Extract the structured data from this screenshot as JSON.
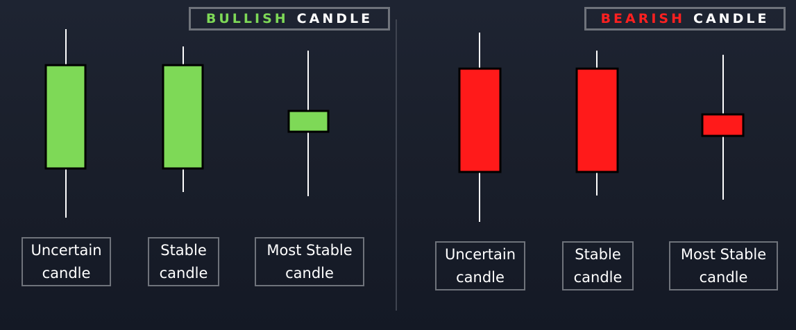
{
  "colors": {
    "bullish": "#7ed957",
    "bearish": "#ff1a1a",
    "wick": "#ffffff",
    "body_border": "#000000",
    "frame": "#6f737b"
  },
  "bullish_panel": {
    "title_accent": "BULLISH",
    "title_rest": "CANDLE",
    "candles": [
      {
        "label_line1": "Uncertain",
        "label_line2": "candle"
      },
      {
        "label_line1": "Stable",
        "label_line2": "candle"
      },
      {
        "label_line1": "Most Stable",
        "label_line2": "candle"
      }
    ]
  },
  "bearish_panel": {
    "title_accent": "BEARISH",
    "title_rest": "CANDLE",
    "candles": [
      {
        "label_line1": "Uncertain",
        "label_line2": "candle"
      },
      {
        "label_line1": "Stable",
        "label_line2": "candle"
      },
      {
        "label_line1": "Most Stable",
        "label_line2": "candle"
      }
    ]
  }
}
